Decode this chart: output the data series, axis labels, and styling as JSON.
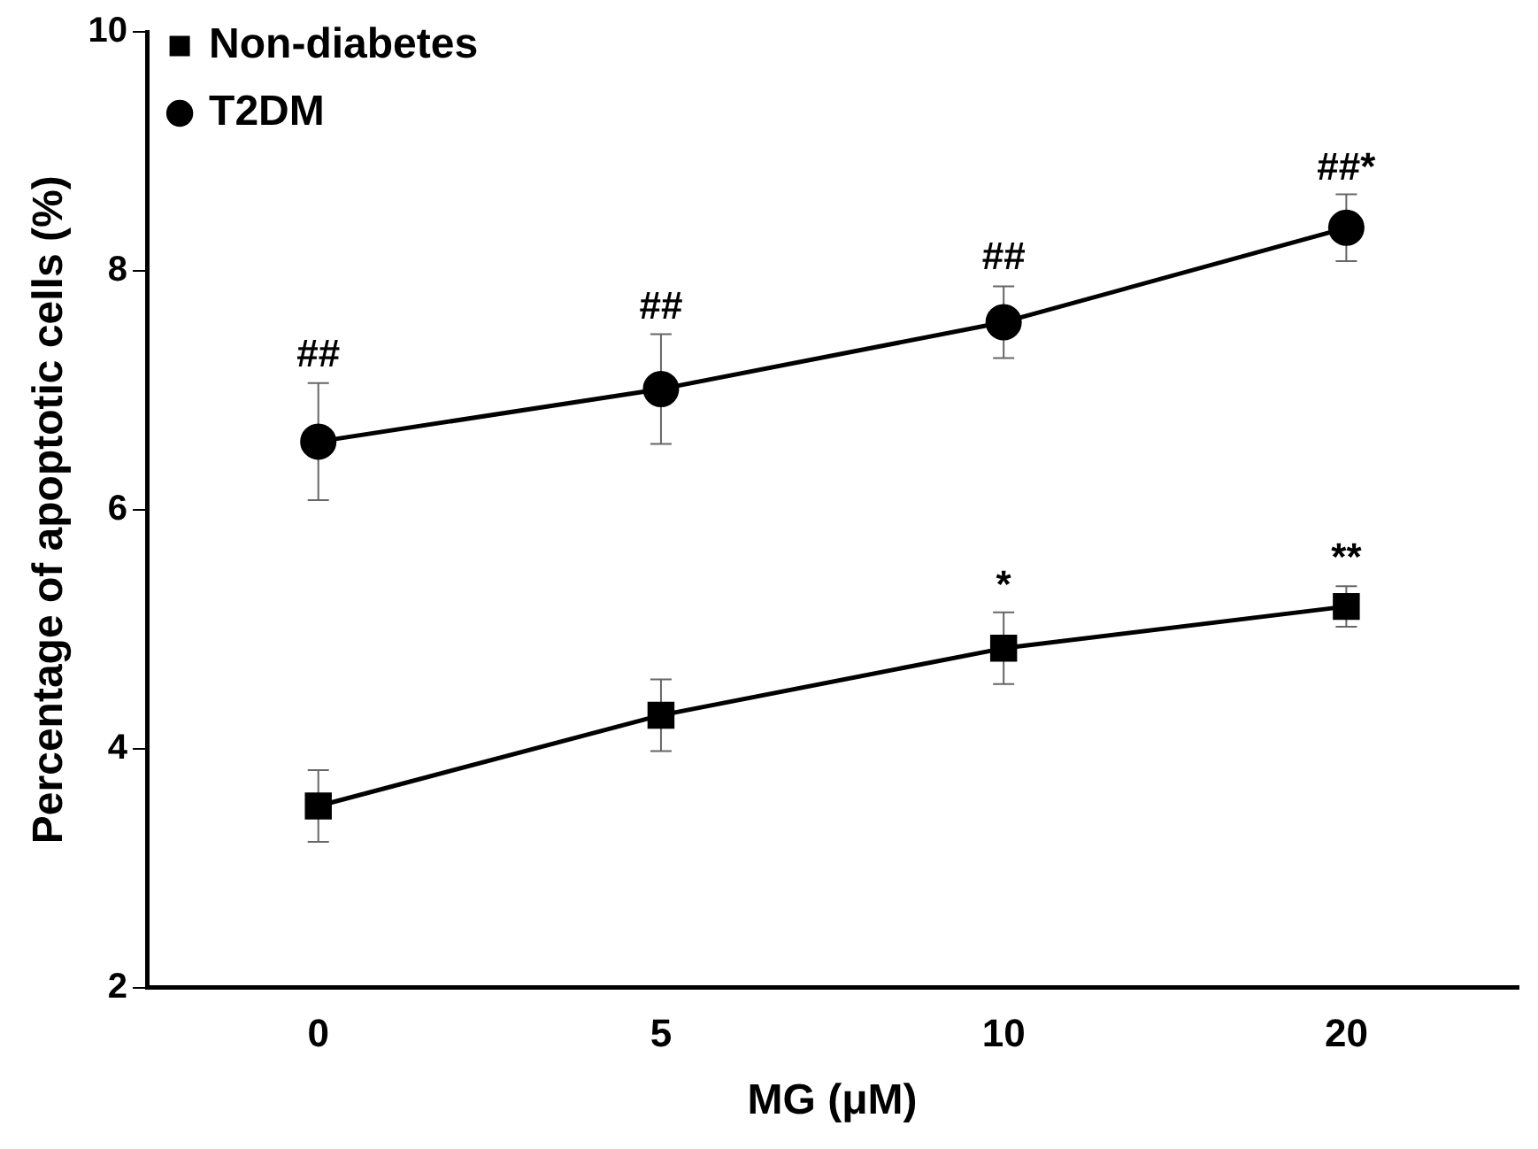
{
  "chart_data": {
    "type": "line",
    "xlabel": "MG (μM)",
    "ylabel": "Percentage of apoptotic cells (%)",
    "categories": [
      "0",
      "5",
      "10",
      "20"
    ],
    "ylim": [
      2,
      10
    ],
    "yticks": [
      2,
      4,
      6,
      8,
      10
    ],
    "grid": false,
    "legend": "top left",
    "line_style": "solid",
    "series": [
      {
        "name": "Non-diabetes",
        "color": "#000000",
        "marker": "square",
        "values": [
          3.52,
          4.28,
          4.84,
          5.19
        ],
        "errors": [
          0.3,
          0.3,
          0.3,
          0.17
        ]
      },
      {
        "name": "T2DM",
        "color": "#000000",
        "marker": "circle",
        "values": [
          6.57,
          7.01,
          7.57,
          8.36
        ],
        "errors": [
          0.49,
          0.46,
          0.3,
          0.28
        ]
      }
    ],
    "annotations": [
      {
        "text": "##",
        "x": "0",
        "y": 7.07
      },
      {
        "text": "##",
        "x": "5",
        "y": 7.47
      },
      {
        "text": "##",
        "x": "10",
        "y": 7.88
      },
      {
        "text": "##*",
        "x": "20",
        "y": 8.63
      },
      {
        "text": "*",
        "x": "10",
        "y": 5.13
      },
      {
        "text": "**",
        "x": "20",
        "y": 5.36
      }
    ]
  }
}
